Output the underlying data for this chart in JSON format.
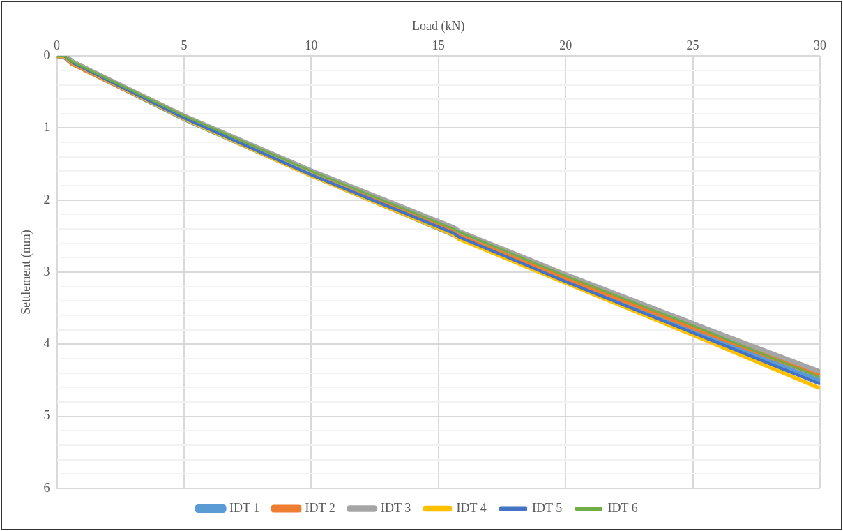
{
  "chart_data": {
    "type": "line",
    "xlabel": "Load (kN)",
    "ylabel": "Settlement (mm)",
    "xlim": [
      0,
      30
    ],
    "xticks": [
      0,
      5,
      10,
      15,
      20,
      25,
      30
    ],
    "ylim": [
      6,
      0
    ],
    "yticks": [
      0,
      {
        "value": 0.2,
        "label": null
      },
      {
        "value": 0.4,
        "label": null
      },
      {
        "value": 0.6,
        "label": null
      },
      {
        "value": 0.8,
        "label": null
      },
      1,
      {
        "value": 1.2,
        "label": null
      },
      {
        "value": 1.4,
        "label": null
      },
      {
        "value": 1.6,
        "label": null
      },
      {
        "value": 1.8,
        "label": null
      },
      2,
      {
        "value": 2.2,
        "label": null
      },
      {
        "value": 2.4,
        "label": null
      },
      {
        "value": 2.6,
        "label": null
      },
      {
        "value": 2.8,
        "label": null
      },
      3,
      {
        "value": 3.2,
        "label": null
      },
      {
        "value": 3.4,
        "label": null
      },
      {
        "value": 3.6,
        "label": null
      },
      {
        "value": 3.8,
        "label": null
      },
      4,
      {
        "value": 4.2,
        "label": null
      },
      {
        "value": 4.4,
        "label": null
      },
      {
        "value": 4.6,
        "label": null
      },
      {
        "value": 4.8,
        "label": null
      },
      5,
      {
        "value": 5.2,
        "label": null
      },
      {
        "value": 5.4,
        "label": null
      },
      {
        "value": 5.6,
        "label": null
      },
      {
        "value": 5.8,
        "label": null
      },
      6
    ],
    "grid": true,
    "legend": "bottom",
    "marker": "none",
    "line_style": "solid",
    "x": [
      0,
      0.3,
      0.6,
      5,
      10,
      15.6,
      15.8,
      20,
      25,
      30
    ],
    "series": [
      {
        "name": "IDT 1",
        "color": "#5b9bd5",
        "values": [
          0,
          0,
          0.09,
          0.86,
          1.64,
          2.47,
          2.5,
          3.12,
          3.83,
          4.52
        ]
      },
      {
        "name": "IDT 2",
        "color": "#ed7d31",
        "values": [
          0,
          0,
          0.1,
          0.85,
          1.62,
          2.42,
          2.46,
          3.07,
          3.76,
          4.43
        ]
      },
      {
        "name": "IDT 3",
        "color": "#a5a5a5",
        "values": [
          0,
          0,
          0.08,
          0.83,
          1.59,
          2.38,
          2.43,
          3.03,
          3.71,
          4.38
        ]
      },
      {
        "name": "IDT 4",
        "color": "#ffc000",
        "values": [
          0,
          0,
          0.09,
          0.87,
          1.66,
          2.48,
          2.54,
          3.15,
          3.87,
          4.61
        ]
      },
      {
        "name": "IDT 5",
        "color": "#4472c4",
        "values": [
          0,
          0,
          0.09,
          0.86,
          1.65,
          2.46,
          2.51,
          3.13,
          3.84,
          4.55
        ]
      },
      {
        "name": "IDT 6",
        "color": "#70ad47",
        "values": [
          0,
          0,
          0.08,
          0.83,
          1.6,
          2.4,
          2.44,
          3.05,
          3.74,
          4.46
        ]
      }
    ]
  }
}
